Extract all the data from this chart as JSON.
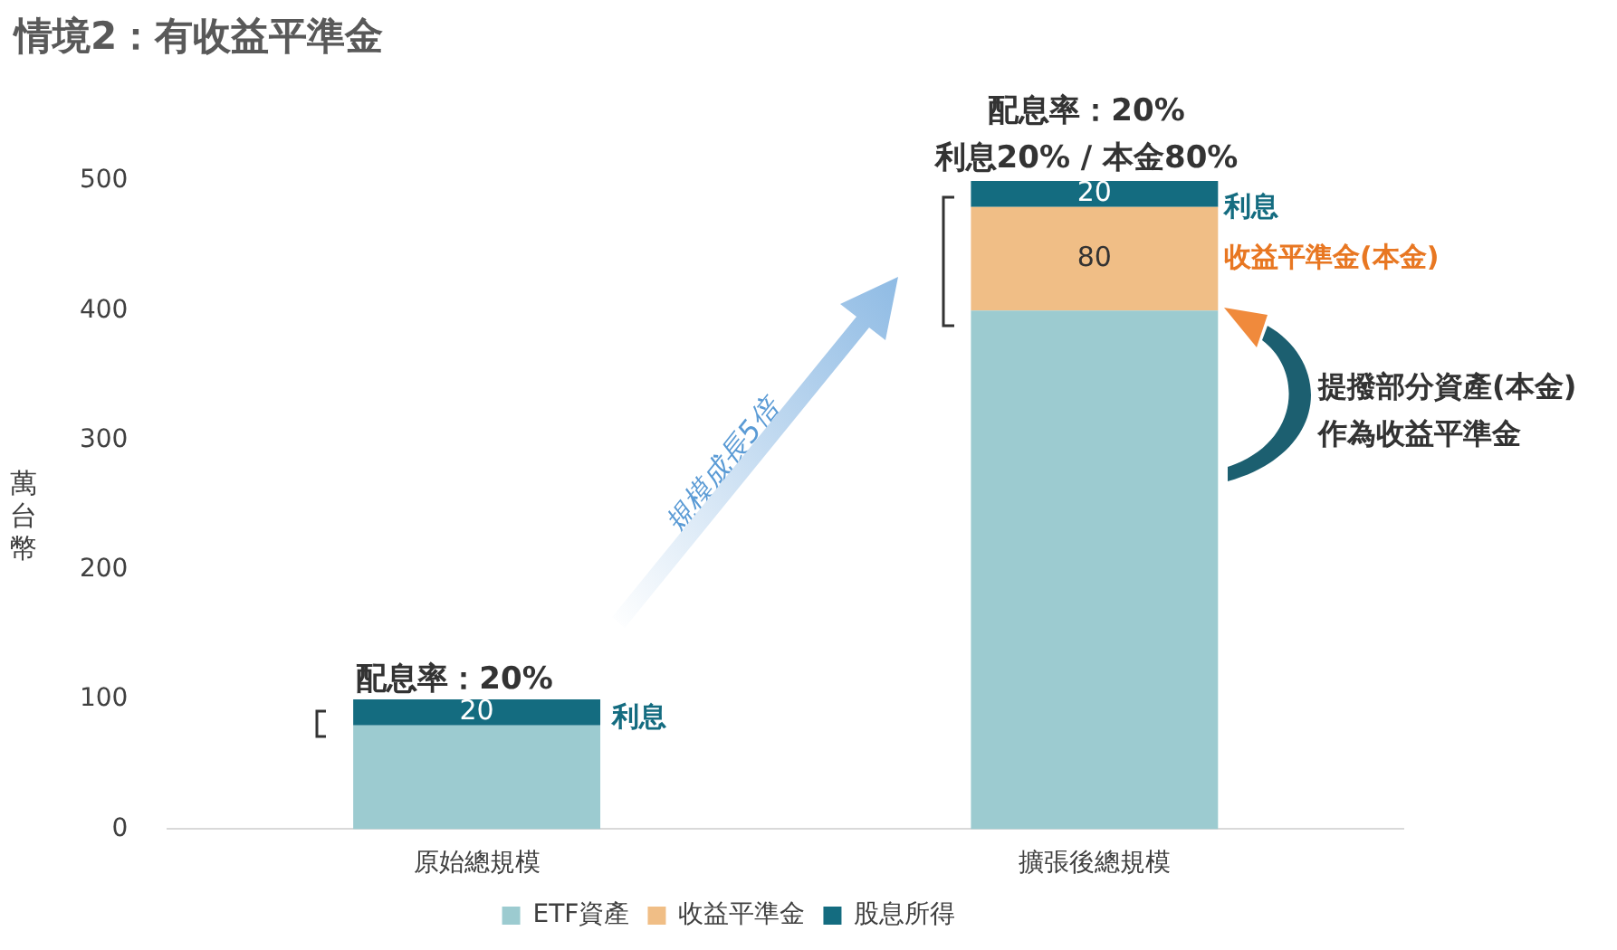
{
  "chart_data": {
    "type": "bar",
    "title": "情境2：有收益平準金",
    "ylabel": "萬台幣",
    "stacked": true,
    "categories": [
      "原始總規模",
      "擴張後總規模"
    ],
    "series": [
      {
        "name": "ETF資產",
        "color": "#9ccbd0",
        "values": [
          80,
          400
        ],
        "value_labels": [
          null,
          null
        ]
      },
      {
        "name": "收益平準金",
        "color": "#f0be86",
        "values": [
          null,
          80
        ],
        "value_labels": [
          null,
          "80"
        ]
      },
      {
        "name": "股息所得",
        "color": "#146c80",
        "values": [
          20,
          20
        ],
        "value_labels": [
          "20",
          "20"
        ]
      }
    ],
    "ylim": [
      0,
      500
    ],
    "yticks": [
      0,
      100,
      200,
      300,
      400,
      500
    ],
    "grid": false,
    "legend": "bottom",
    "annotations": [
      "配息率：20%",
      "配息率：20%",
      "利息20% / 本金80%",
      "利息",
      "利息",
      "收益平準金(本金)",
      "提撥部分資產(本金)",
      "作為收益平準金",
      "規模成長5倍"
    ]
  }
}
